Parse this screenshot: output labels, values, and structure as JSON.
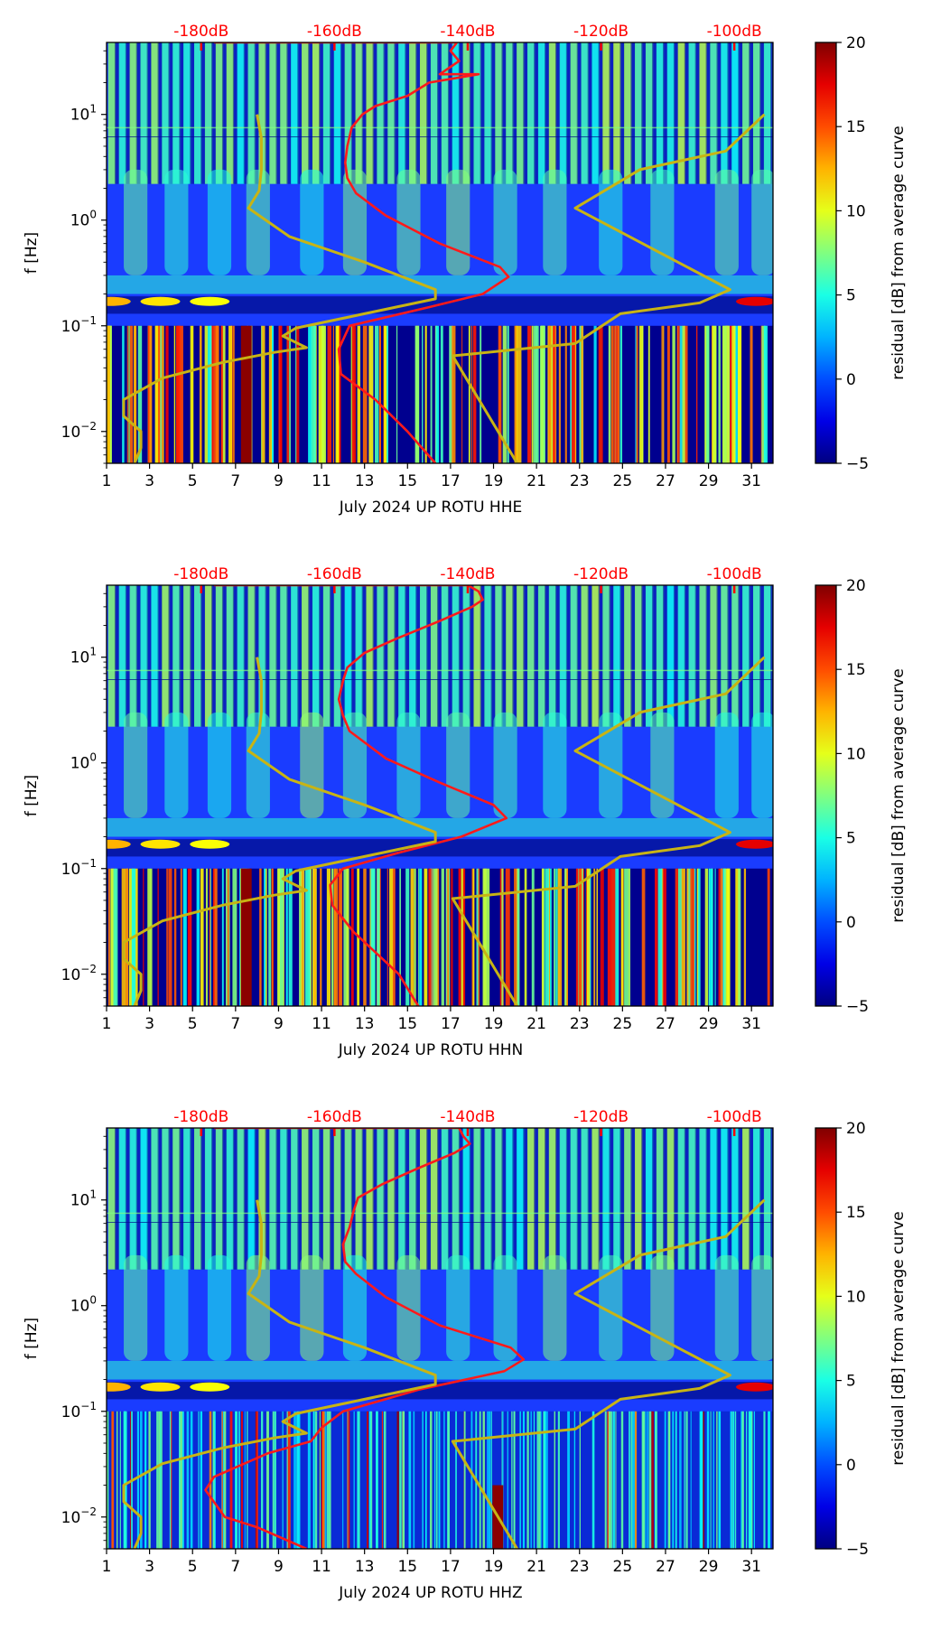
{
  "chart_data": [
    {
      "type": "heatmap",
      "title": "",
      "xlabel": "July 2024 UP ROTU  HHE",
      "ylabel": "f [Hz]",
      "xlim": [
        1,
        32
      ],
      "ylim": [
        0.005,
        48
      ],
      "yscale": "log",
      "x_ticks": [
        "1",
        "3",
        "5",
        "7",
        "9",
        "11",
        "13",
        "15",
        "17",
        "19",
        "21",
        "23",
        "25",
        "27",
        "29",
        "31"
      ],
      "y_ticks": [
        {
          "value": 10,
          "base": "10",
          "exp": "1"
        },
        {
          "value": 1,
          "base": "10",
          "exp": "0"
        },
        {
          "value": 0.1,
          "base": "10",
          "exp": "−1"
        },
        {
          "value": 0.01,
          "base": "10",
          "exp": "−2"
        }
      ],
      "top_axis": {
        "color": "#ff0000",
        "ticks": [
          {
            "label": "-180dB",
            "x": 5.4
          },
          {
            "label": "-160dB",
            "x": 11.6
          },
          {
            "label": "-140dB",
            "x": 17.8
          },
          {
            "label": "-120dB",
            "x": 24.0
          },
          {
            "label": "-100dB",
            "x": 30.2
          }
        ]
      },
      "colorbar": {
        "label": "residual [dB] from average curve",
        "range": [
          -5,
          20
        ],
        "ticks": [
          "20",
          "15",
          "10",
          "5",
          "0",
          "−5"
        ],
        "colormap": "jet"
      },
      "series": [
        {
          "name": "average PSD curve",
          "color": "#ff1a1a",
          "points": [
            [
              6.0,
              48
            ],
            [
              17.3,
              48
            ],
            [
              17.0,
              40
            ],
            [
              17.4,
              32
            ],
            [
              16.5,
              24
            ],
            [
              18.3,
              24
            ],
            [
              16.0,
              20
            ],
            [
              15.0,
              15
            ],
            [
              13.5,
              12
            ],
            [
              12.9,
              10
            ],
            [
              12.4,
              7.5
            ],
            [
              12.2,
              5
            ],
            [
              12.1,
              3.5
            ],
            [
              12.2,
              2.5
            ],
            [
              12.6,
              1.8
            ],
            [
              14.0,
              1.1
            ],
            [
              16.5,
              0.6
            ],
            [
              19.3,
              0.36
            ],
            [
              19.7,
              0.29
            ],
            [
              18.5,
              0.2
            ],
            [
              16.0,
              0.15
            ],
            [
              12.3,
              0.1
            ],
            [
              11.8,
              0.06
            ],
            [
              11.9,
              0.035
            ],
            [
              13.5,
              0.02
            ],
            [
              15.0,
              0.01
            ],
            [
              16.3,
              0.005
            ]
          ]
        },
        {
          "name": "NLNM/NHNM reference (low)",
          "color": "#c8b414",
          "points": [
            [
              8.0,
              10
            ],
            [
              8.2,
              6
            ],
            [
              8.2,
              3.0
            ],
            [
              8.1,
              1.9
            ],
            [
              7.6,
              1.3
            ],
            [
              9.5,
              0.7
            ],
            [
              13.0,
              0.4
            ],
            [
              16.3,
              0.22
            ],
            [
              16.3,
              0.18
            ],
            [
              13.0,
              0.13
            ],
            [
              9.8,
              0.095
            ],
            [
              9.2,
              0.08
            ],
            [
              10.3,
              0.062
            ],
            [
              8.8,
              0.056
            ],
            [
              6.4,
              0.045
            ],
            [
              3.6,
              0.032
            ],
            [
              1.8,
              0.02
            ],
            [
              1.8,
              0.014
            ],
            [
              2.6,
              0.01
            ],
            [
              2.6,
              0.007
            ],
            [
              2.3,
              0.005
            ]
          ]
        },
        {
          "name": "NLNM/NHNM reference (high)",
          "color": "#c8b414",
          "points": [
            [
              31.6,
              10
            ],
            [
              29.8,
              4.5
            ],
            [
              25.8,
              3.0
            ],
            [
              22.8,
              1.3
            ],
            [
              30.0,
              0.22
            ],
            [
              28.6,
              0.165
            ],
            [
              24.9,
              0.13
            ],
            [
              22.8,
              0.068
            ],
            [
              17.1,
              0.052
            ],
            [
              20.1,
              0.005
            ]
          ]
        }
      ]
    },
    {
      "type": "heatmap",
      "title": "",
      "xlabel": "July 2024 UP ROTU  HHN",
      "ylabel": "f [Hz]",
      "xlim": [
        1,
        32
      ],
      "ylim": [
        0.005,
        48
      ],
      "yscale": "log",
      "x_ticks": [
        "1",
        "3",
        "5",
        "7",
        "9",
        "11",
        "13",
        "15",
        "17",
        "19",
        "21",
        "23",
        "25",
        "27",
        "29",
        "31"
      ],
      "y_ticks": [
        {
          "value": 10,
          "base": "10",
          "exp": "1"
        },
        {
          "value": 1,
          "base": "10",
          "exp": "0"
        },
        {
          "value": 0.1,
          "base": "10",
          "exp": "−1"
        },
        {
          "value": 0.01,
          "base": "10",
          "exp": "−2"
        }
      ],
      "top_axis": {
        "color": "#ff0000",
        "ticks": [
          {
            "label": "-180dB",
            "x": 5.4
          },
          {
            "label": "-160dB",
            "x": 11.6
          },
          {
            "label": "-140dB",
            "x": 17.8
          },
          {
            "label": "-120dB",
            "x": 24.0
          },
          {
            "label": "-100dB",
            "x": 30.2
          }
        ]
      },
      "colorbar": {
        "label": "residual [dB] from average curve",
        "range": [
          -5,
          20
        ],
        "ticks": [
          "20",
          "15",
          "10",
          "5",
          "0",
          "−5"
        ],
        "colormap": "jet"
      },
      "series": [
        {
          "name": "average PSD curve",
          "color": "#ff1a1a",
          "points": [
            [
              6.0,
              48
            ],
            [
              17.8,
              48
            ],
            [
              18.3,
              42
            ],
            [
              18.5,
              35
            ],
            [
              18.0,
              30
            ],
            [
              16.5,
              22
            ],
            [
              14.5,
              15
            ],
            [
              13.0,
              11
            ],
            [
              12.2,
              8
            ],
            [
              12.0,
              6
            ],
            [
              11.8,
              4
            ],
            [
              12.0,
              2.8
            ],
            [
              12.3,
              2.0
            ],
            [
              14.0,
              1.1
            ],
            [
              16.5,
              0.65
            ],
            [
              19.0,
              0.4
            ],
            [
              19.6,
              0.3
            ],
            [
              17.5,
              0.2
            ],
            [
              14.5,
              0.14
            ],
            [
              12.0,
              0.1
            ],
            [
              11.4,
              0.07
            ],
            [
              11.5,
              0.045
            ],
            [
              12.5,
              0.025
            ],
            [
              14.6,
              0.01
            ],
            [
              15.5,
              0.005
            ]
          ]
        },
        {
          "name": "NLNM/NHNM reference (low)",
          "color": "#c8b414",
          "points": [
            [
              8.0,
              10
            ],
            [
              8.2,
              6
            ],
            [
              8.2,
              3.0
            ],
            [
              8.1,
              1.9
            ],
            [
              7.6,
              1.3
            ],
            [
              9.5,
              0.7
            ],
            [
              13.0,
              0.4
            ],
            [
              16.3,
              0.22
            ],
            [
              16.3,
              0.18
            ],
            [
              13.0,
              0.13
            ],
            [
              9.8,
              0.095
            ],
            [
              9.2,
              0.08
            ],
            [
              10.3,
              0.062
            ],
            [
              8.8,
              0.056
            ],
            [
              6.4,
              0.045
            ],
            [
              3.6,
              0.032
            ],
            [
              1.8,
              0.02
            ],
            [
              1.8,
              0.014
            ],
            [
              2.6,
              0.01
            ],
            [
              2.6,
              0.007
            ],
            [
              2.3,
              0.005
            ]
          ]
        },
        {
          "name": "NLNM/NHNM reference (high)",
          "color": "#c8b414",
          "points": [
            [
              31.6,
              10
            ],
            [
              29.8,
              4.5
            ],
            [
              25.8,
              3.0
            ],
            [
              22.8,
              1.3
            ],
            [
              30.0,
              0.22
            ],
            [
              28.6,
              0.165
            ],
            [
              24.9,
              0.13
            ],
            [
              22.8,
              0.068
            ],
            [
              17.1,
              0.052
            ],
            [
              20.1,
              0.005
            ]
          ]
        }
      ]
    },
    {
      "type": "heatmap",
      "title": "",
      "xlabel": "July 2024 UP ROTU  HHZ",
      "ylabel": "f [Hz]",
      "xlim": [
        1,
        32
      ],
      "ylim": [
        0.005,
        48
      ],
      "yscale": "log",
      "x_ticks": [
        "1",
        "3",
        "5",
        "7",
        "9",
        "11",
        "13",
        "15",
        "17",
        "19",
        "21",
        "23",
        "25",
        "27",
        "29",
        "31"
      ],
      "y_ticks": [
        {
          "value": 10,
          "base": "10",
          "exp": "1"
        },
        {
          "value": 1,
          "base": "10",
          "exp": "0"
        },
        {
          "value": 0.1,
          "base": "10",
          "exp": "−1"
        },
        {
          "value": 0.01,
          "base": "10",
          "exp": "−2"
        }
      ],
      "top_axis": {
        "color": "#ff0000",
        "ticks": [
          {
            "label": "-180dB",
            "x": 5.4
          },
          {
            "label": "-160dB",
            "x": 11.6
          },
          {
            "label": "-140dB",
            "x": 17.8
          },
          {
            "label": "-120dB",
            "x": 24.0
          },
          {
            "label": "-100dB",
            "x": 30.2
          }
        ]
      },
      "colorbar": {
        "label": "residual [dB] from average curve",
        "range": [
          -5,
          20
        ],
        "ticks": [
          "20",
          "15",
          "10",
          "5",
          "0",
          "−5"
        ],
        "colormap": "jet"
      },
      "series": [
        {
          "name": "average PSD curve",
          "color": "#ff1a1a",
          "points": [
            [
              6.0,
              48
            ],
            [
              17.4,
              48
            ],
            [
              17.6,
              40
            ],
            [
              17.9,
              34
            ],
            [
              17.2,
              28
            ],
            [
              15.5,
              20
            ],
            [
              13.8,
              14
            ],
            [
              12.7,
              10.5
            ],
            [
              12.5,
              8
            ],
            [
              12.3,
              5.5
            ],
            [
              12.0,
              3.8
            ],
            [
              12.1,
              2.6
            ],
            [
              12.6,
              2.0
            ],
            [
              14.0,
              1.2
            ],
            [
              16.5,
              0.65
            ],
            [
              19.8,
              0.4
            ],
            [
              20.4,
              0.31
            ],
            [
              19.5,
              0.24
            ],
            [
              15.5,
              0.16
            ],
            [
              12.0,
              0.1
            ],
            [
              11.0,
              0.07
            ],
            [
              10.5,
              0.052
            ],
            [
              8.5,
              0.04
            ],
            [
              6.0,
              0.024
            ],
            [
              5.6,
              0.018
            ],
            [
              6.5,
              0.01
            ],
            [
              8.0,
              0.008
            ],
            [
              10.3,
              0.005
            ]
          ]
        },
        {
          "name": "NLNM/NHNM reference (low)",
          "color": "#c8b414",
          "points": [
            [
              8.0,
              10
            ],
            [
              8.2,
              6
            ],
            [
              8.2,
              3.0
            ],
            [
              8.1,
              1.9
            ],
            [
              7.6,
              1.3
            ],
            [
              9.5,
              0.7
            ],
            [
              13.0,
              0.4
            ],
            [
              16.3,
              0.22
            ],
            [
              16.3,
              0.18
            ],
            [
              13.0,
              0.13
            ],
            [
              9.8,
              0.095
            ],
            [
              9.2,
              0.08
            ],
            [
              10.3,
              0.062
            ],
            [
              8.8,
              0.056
            ],
            [
              6.4,
              0.045
            ],
            [
              3.6,
              0.032
            ],
            [
              1.8,
              0.02
            ],
            [
              1.8,
              0.014
            ],
            [
              2.6,
              0.01
            ],
            [
              2.6,
              0.007
            ],
            [
              2.3,
              0.005
            ]
          ]
        },
        {
          "name": "NLNM/NHNM reference (high)",
          "color": "#c8b414",
          "points": [
            [
              31.6,
              10
            ],
            [
              29.8,
              4.5
            ],
            [
              25.8,
              3.0
            ],
            [
              22.8,
              1.3
            ],
            [
              30.0,
              0.22
            ],
            [
              28.6,
              0.165
            ],
            [
              24.9,
              0.13
            ],
            [
              22.8,
              0.068
            ],
            [
              17.1,
              0.052
            ],
            [
              20.1,
              0.005
            ]
          ]
        }
      ]
    }
  ]
}
